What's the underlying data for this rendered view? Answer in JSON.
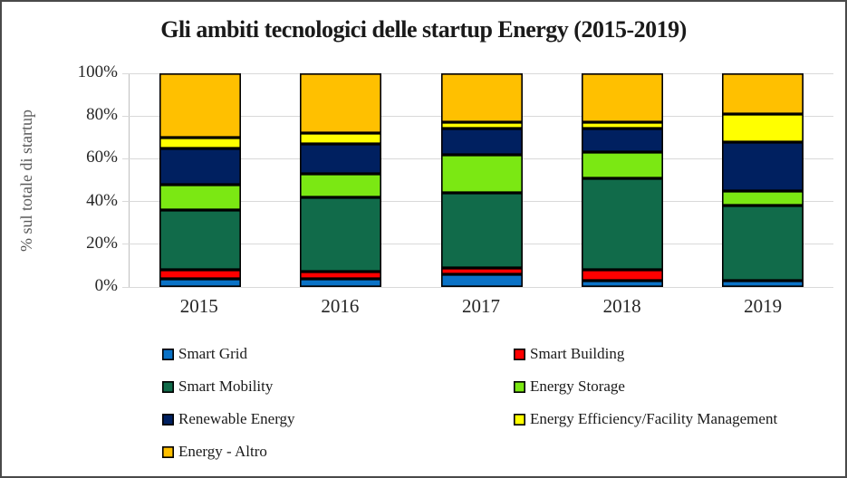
{
  "chart_data": {
    "type": "bar",
    "stacked": true,
    "percent_of_total": true,
    "title": "Gli ambiti tecnologici delle startup Energy (2015-2019)",
    "ylabel": "% sul totale di startup",
    "xlabel": "",
    "ylim": [
      0,
      100
    ],
    "ytick_values": [
      0,
      20,
      40,
      60,
      80,
      100
    ],
    "ytick_labels": [
      "0%",
      "20%",
      "40%",
      "60%",
      "80%",
      "100%"
    ],
    "grid": true,
    "legend_position": "bottom-two-columns",
    "categories": [
      "2015",
      "2016",
      "2017",
      "2018",
      "2019"
    ],
    "series": [
      {
        "name": "Smart Grid",
        "color": "#0a72c6",
        "values": [
          4,
          4,
          6,
          3,
          3
        ]
      },
      {
        "name": "Smart Building",
        "color": "#ff0000",
        "values": [
          4,
          3,
          3,
          5,
          0
        ]
      },
      {
        "name": "Smart Mobility",
        "color": "#116b4a",
        "values": [
          28,
          35,
          35,
          43,
          35
        ]
      },
      {
        "name": "Energy Storage",
        "color": "#7be813",
        "values": [
          12,
          11,
          18,
          12,
          7
        ]
      },
      {
        "name": "Renewable Energy",
        "color": "#002060",
        "values": [
          17,
          14,
          12,
          11,
          23
        ]
      },
      {
        "name": "Energy Efficiency/Facility Management",
        "color": "#ffff00",
        "values": [
          5,
          5,
          3,
          3,
          13
        ]
      },
      {
        "name": "Energy - Altro",
        "color": "#ffc000",
        "values": [
          30,
          28,
          23,
          23,
          19
        ]
      }
    ]
  },
  "colors": {
    "gridline": "#d9d9d9",
    "bar_border": "#000000",
    "axis_text": "#262626",
    "y_axis_title_text": "#595959",
    "title_text": "#1a1a1a",
    "frame_border": "#4a4a4a",
    "background": "#ffffff"
  }
}
